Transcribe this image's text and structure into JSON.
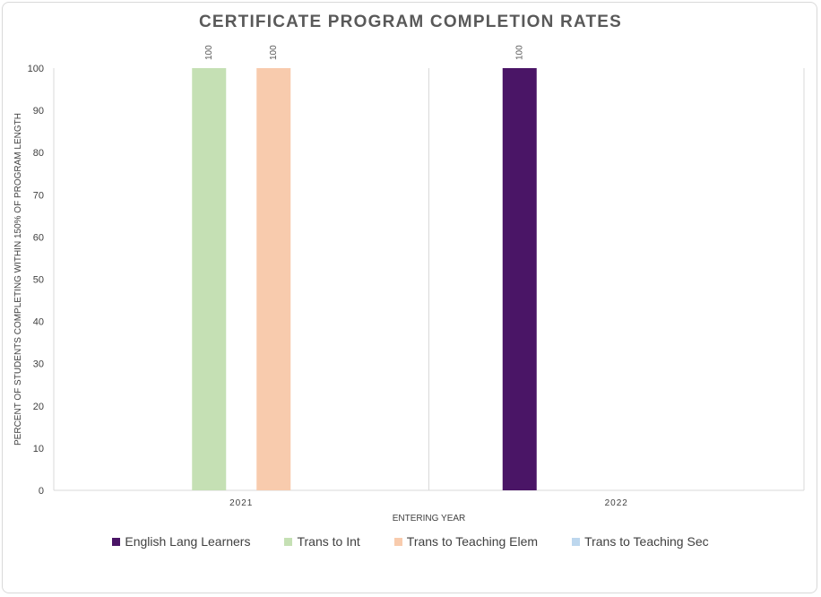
{
  "chart_data": {
    "type": "bar",
    "title": "CERTIFICATE PROGRAM COMPLETION RATES",
    "xlabel": "ENTERING YEAR",
    "ylabel": "PERCENT OF  STUDENTS COMPLETING WITHIN 150% OF PROGRAM LENGTH",
    "categories": [
      "2021",
      "2022"
    ],
    "ylim": [
      0,
      100
    ],
    "yticks": [
      0,
      10,
      20,
      30,
      40,
      50,
      60,
      70,
      80,
      90,
      100
    ],
    "grid": false,
    "legend_position": "bottom",
    "series": [
      {
        "name": "English Lang Learners",
        "color": "#4a1566",
        "values": [
          null,
          100
        ]
      },
      {
        "name": "Trans to Int",
        "color": "#c5e0b4",
        "values": [
          100,
          null
        ]
      },
      {
        "name": "Trans to Teaching Elem",
        "color": "#f8cbad",
        "values": [
          100,
          null
        ]
      },
      {
        "name": "Trans to Teaching Sec",
        "color": "#bdd7ee",
        "values": [
          null,
          null
        ]
      }
    ]
  }
}
